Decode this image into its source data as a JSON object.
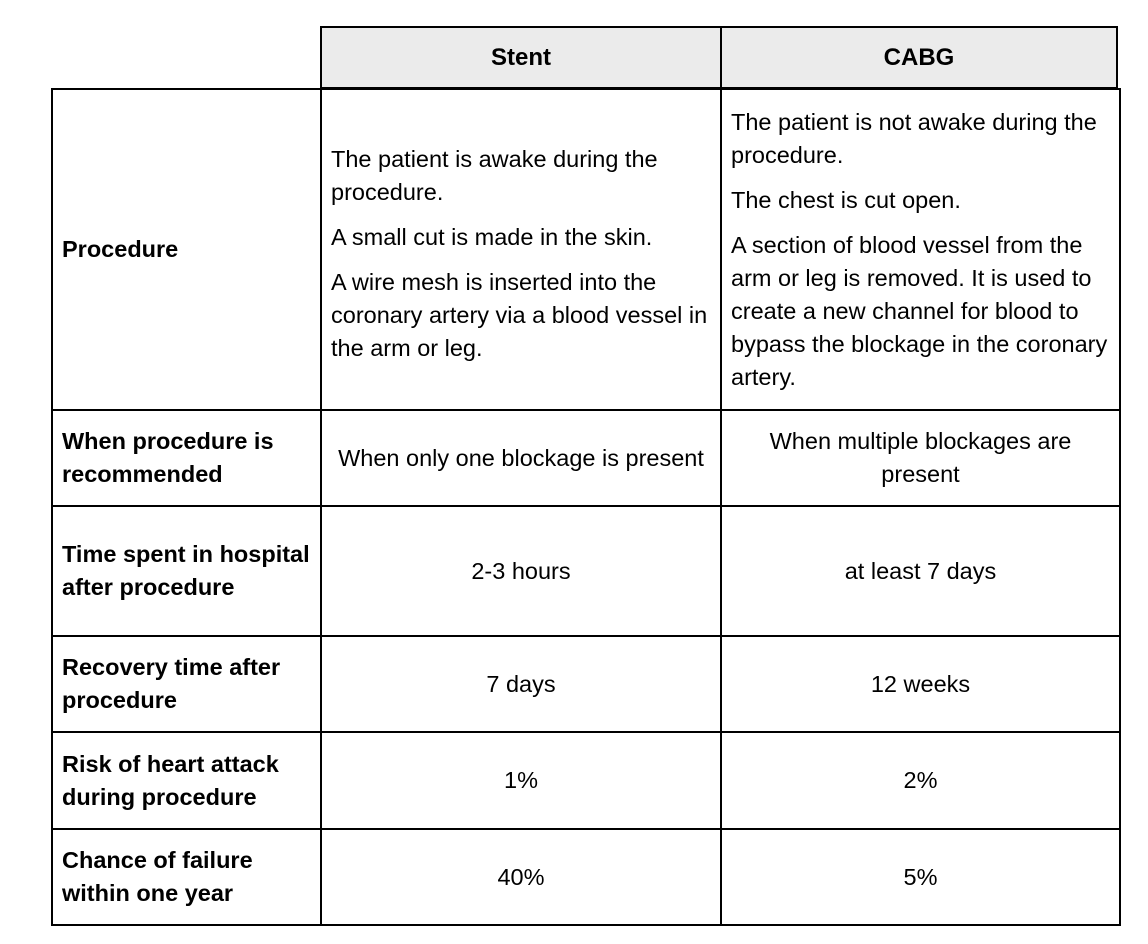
{
  "header": {
    "columns": [
      "Stent",
      "CABG"
    ]
  },
  "rows": [
    {
      "label": "Procedure",
      "stent": [
        "The patient is awake during the procedure.",
        "A small cut is made in the skin.",
        "A wire mesh is inserted into the coronary artery via a blood vessel in the arm or leg."
      ],
      "cabg": [
        "The patient is not awake during the procedure.",
        "The chest is cut open.",
        "A section of blood vessel from the arm or leg is removed. It is used to create a new channel for blood to bypass the blockage in the coronary artery."
      ]
    },
    {
      "label": "When procedure is recommended",
      "stent": "When only one blockage is present",
      "cabg": "When multiple blockages are present"
    },
    {
      "label": "Time spent in hospital after procedure",
      "stent": "2-3 hours",
      "cabg": "at least 7 days"
    },
    {
      "label": "Recovery time after procedure",
      "stent": "7 days",
      "cabg": "12 weeks"
    },
    {
      "label": "Risk of heart attack during procedure",
      "stent": "1%",
      "cabg": "2%"
    },
    {
      "label": "Chance of failure within one year",
      "stent": "40%",
      "cabg": "5%"
    }
  ]
}
